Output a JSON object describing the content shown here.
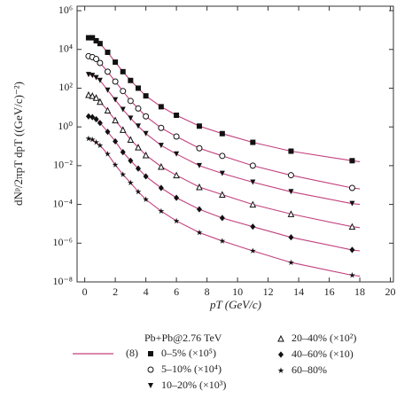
{
  "chart_data": {
    "type": "scatter",
    "y_label": "dNᵖ/2πpT dpT ((GeV/c)⁻²)",
    "x_label": "pT (GeV/c)",
    "log_y": true,
    "xlim": [
      -0.5,
      20.2
    ],
    "ylim": [
      1e-08,
      1700000.0
    ],
    "xticks": [
      0,
      2,
      4,
      6,
      8,
      10,
      12,
      14,
      16,
      18,
      20
    ],
    "yticks": [
      {
        "value": 1000000.0,
        "label": "10⁶"
      },
      {
        "value": 10000.0,
        "label": "10⁴"
      },
      {
        "value": 100.0,
        "label": "10²"
      },
      {
        "value": 1,
        "label": "10⁰"
      },
      {
        "value": 0.01,
        "label": "10⁻²"
      },
      {
        "value": 0.0001,
        "label": "10⁻⁴"
      },
      {
        "value": 1e-06,
        "label": "10⁻⁶"
      },
      {
        "value": 1e-08,
        "label": "10⁻⁸"
      }
    ],
    "legend_title": "Pb+Pb@2.76 TeV",
    "x": [
      0.25,
      0.5,
      0.75,
      1,
      1.5,
      2,
      2.5,
      3,
      3.5,
      4,
      5,
      6,
      7.5,
      9,
      11,
      13.5,
      17.5
    ],
    "series": [
      {
        "name": "0–5% (×10⁵)",
        "marker": "square",
        "color": "#111",
        "values": [
          40000.0,
          40000.0,
          28000.0,
          20000.0,
          7100.0,
          2200.0,
          710.0,
          250.0,
          100.0,
          40,
          11,
          4.0,
          1.1,
          0.45,
          0.16,
          0.056,
          0.018
        ]
      },
      {
        "name": "5–10% (×10⁴)",
        "marker": "circle",
        "color": "#111",
        "values": [
          4500.0,
          4000.0,
          3200.0,
          2000.0,
          710.0,
          220.0,
          71,
          22,
          8.9,
          3.5,
          0.89,
          0.32,
          0.079,
          0.032,
          0.01,
          0.0032,
          0.00071
        ]
      },
      {
        "name": "10–20% (×10³)",
        "marker": "triangle-down",
        "color": "#111",
        "values": [
          500.0,
          450.0,
          350.0,
          250.0,
          79,
          25,
          7.9,
          2.8,
          1.1,
          0.45,
          0.11,
          0.04,
          0.01,
          0.004,
          0.0014,
          0.00045,
          0.00011
        ]
      },
      {
        "name": "20–40% (×10²)",
        "marker": "triangle-up",
        "color": "#111",
        "values": [
          45,
          40,
          32,
          20,
          7.1,
          2.2,
          0.71,
          0.22,
          0.089,
          0.035,
          0.0089,
          0.0032,
          0.00079,
          0.00032,
          0.0001,
          3.2e-05,
          7.1e-06
        ]
      },
      {
        "name": "40–60% (×10)",
        "marker": "diamond",
        "color": "#111",
        "values": [
          3.5,
          3.2,
          2.5,
          1.6,
          0.56,
          0.18,
          0.05,
          0.018,
          0.0071,
          0.0028,
          0.00071,
          0.00022,
          5.6e-05,
          2e-05,
          7.1e-06,
          2e-06,
          4.5e-07
        ]
      },
      {
        "name": "60–80%",
        "marker": "star",
        "color": "#111",
        "values": [
          0.25,
          0.22,
          0.16,
          0.11,
          0.04,
          0.011,
          0.0035,
          0.0013,
          0.00045,
          0.00018,
          4.5e-05,
          1.4e-05,
          3.5e-06,
          1.3e-06,
          4e-07,
          1e-07,
          2.2e-08
        ]
      }
    ],
    "fit": {
      "name": "(8)",
      "color": "#c2407e",
      "x": [
        0.25,
        0.5,
        0.75,
        1,
        1.5,
        2,
        2.5,
        3,
        3.5,
        4,
        5,
        6,
        7.5,
        9,
        11,
        13.5,
        17.5,
        18
      ],
      "curves": [
        [
          40000.0,
          40000.0,
          28000.0,
          20000.0,
          7100.0,
          2200.0,
          710.0,
          250.0,
          100.0,
          40,
          11,
          4.0,
          1.1,
          0.45,
          0.16,
          0.056,
          0.018,
          0.016
        ],
        [
          4500.0,
          4000.0,
          3200.0,
          2000.0,
          710.0,
          220.0,
          71,
          22,
          8.9,
          3.5,
          0.89,
          0.32,
          0.079,
          0.032,
          0.01,
          0.0032,
          0.00071,
          0.00063
        ],
        [
          500.0,
          450.0,
          350.0,
          250.0,
          79,
          25,
          7.9,
          2.8,
          1.1,
          0.45,
          0.11,
          0.04,
          0.01,
          0.004,
          0.0014,
          0.00045,
          0.00011,
          0.0001
        ],
        [
          45,
          40,
          32,
          20,
          7.1,
          2.2,
          0.71,
          0.22,
          0.089,
          0.035,
          0.0089,
          0.0032,
          0.00079,
          0.00032,
          0.0001,
          3.2e-05,
          7.1e-06,
          6.3e-06
        ],
        [
          3.5,
          3.2,
          2.5,
          1.6,
          0.56,
          0.18,
          0.05,
          0.018,
          0.0071,
          0.0028,
          0.00071,
          0.00022,
          5.6e-05,
          2e-05,
          7.1e-06,
          2e-06,
          4.5e-07,
          4e-07
        ],
        [
          0.25,
          0.22,
          0.16,
          0.11,
          0.04,
          0.011,
          0.0035,
          0.0013,
          0.00045,
          0.00018,
          4.5e-05,
          1.4e-05,
          3.5e-06,
          1.3e-06,
          4e-07,
          1e-07,
          2.2e-08,
          2e-08
        ]
      ]
    }
  }
}
